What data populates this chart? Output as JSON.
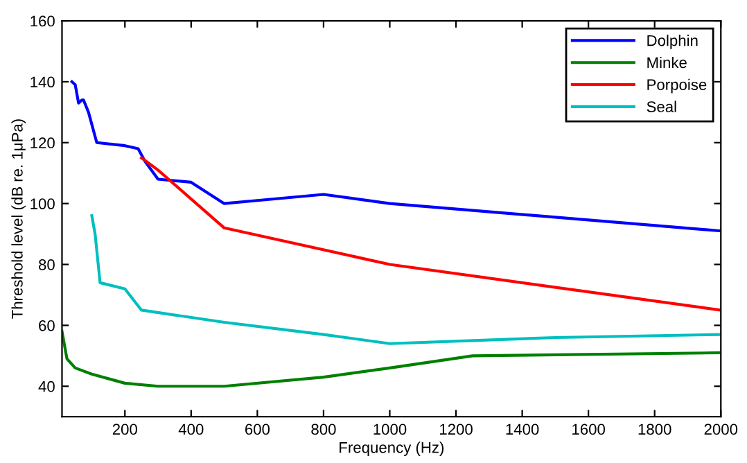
{
  "chart_data": {
    "type": "line",
    "xlabel": "Frequency (Hz)",
    "ylabel": "Threshold level (dB re. 1μPa)",
    "xlim": [
      10,
      2000
    ],
    "xticks": [
      200,
      400,
      600,
      800,
      1000,
      1200,
      1400,
      1600,
      1800,
      2000
    ],
    "ylim": [
      30,
      160
    ],
    "yticks": [
      40,
      60,
      80,
      100,
      120,
      140,
      160
    ],
    "grid": false,
    "legend": "top right",
    "series": [
      {
        "name": "Dolphin",
        "color": "#0000ff",
        "x": [
          40,
          50,
          60,
          70,
          75,
          90,
          115,
          200,
          240,
          260,
          300,
          400,
          500,
          600,
          800,
          1000,
          2000
        ],
        "values": [
          140,
          139,
          133,
          134,
          134,
          130,
          120,
          119,
          118,
          114,
          108,
          107,
          100,
          101,
          103,
          100,
          91
        ]
      },
      {
        "name": "Minke",
        "color": "#008000",
        "x": [
          10,
          25,
          50,
          100,
          200,
          300,
          500,
          800,
          1000,
          1250,
          2000
        ],
        "values": [
          58,
          49,
          46,
          44,
          41,
          40,
          40,
          43,
          46,
          50,
          51
        ]
      },
      {
        "name": "Porpoise",
        "color": "#ff0000",
        "x": [
          250,
          300,
          500,
          1000,
          2000
        ],
        "values": [
          115,
          111,
          92,
          80,
          65
        ]
      },
      {
        "name": "Seal",
        "color": "#00bfbf",
        "x": [
          100,
          110,
          125,
          200,
          250,
          500,
          800,
          1000,
          1500,
          2000
        ],
        "values": [
          96,
          90,
          74,
          72,
          65,
          61,
          57,
          54,
          56,
          57
        ]
      }
    ]
  }
}
